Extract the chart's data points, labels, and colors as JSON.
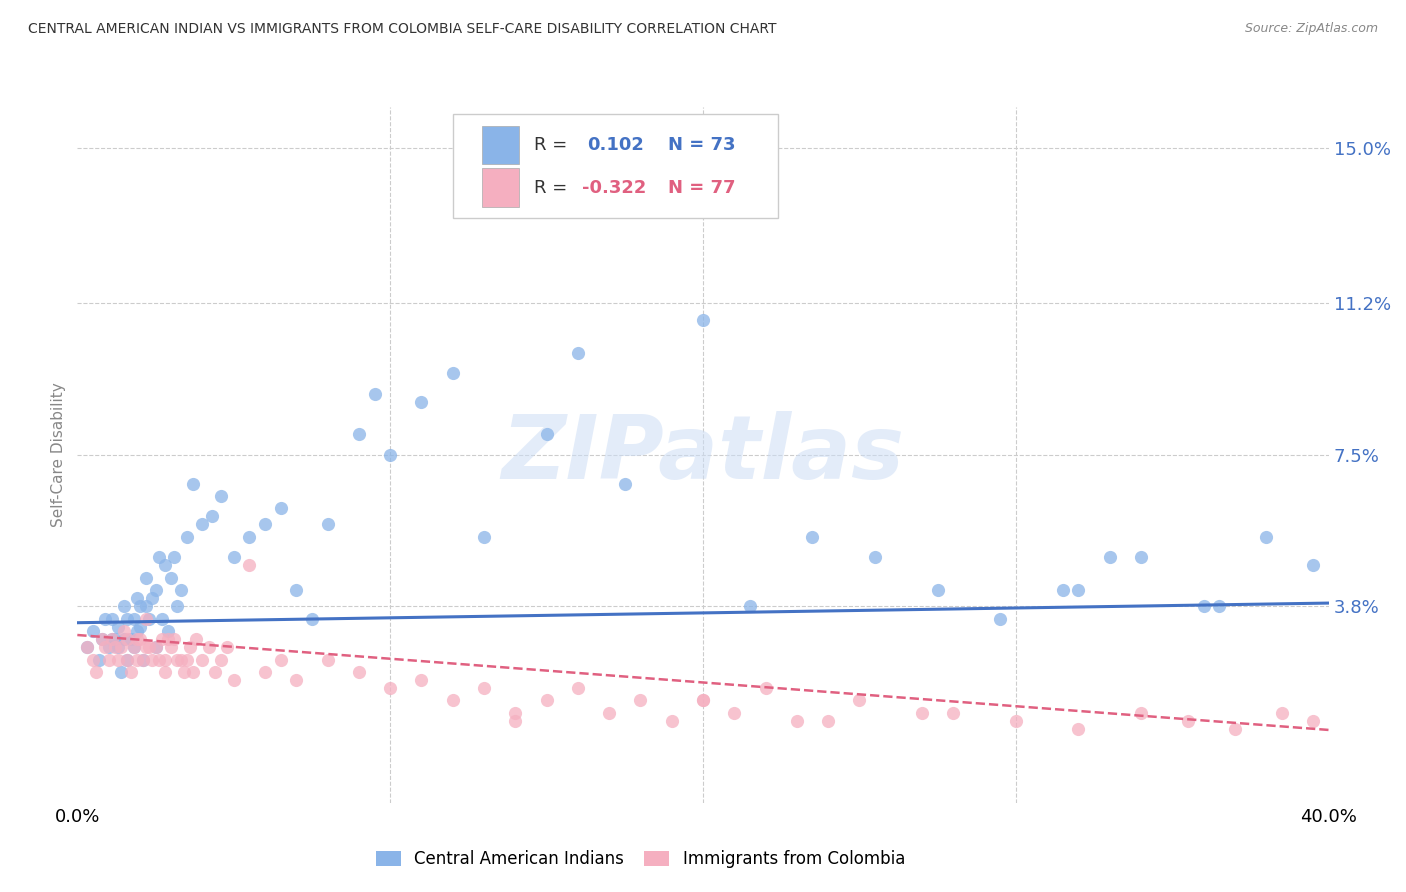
{
  "title": "CENTRAL AMERICAN INDIAN VS IMMIGRANTS FROM COLOMBIA SELF-CARE DISABILITY CORRELATION CHART",
  "source": "Source: ZipAtlas.com",
  "ylabel": "Self-Care Disability",
  "xlim": [
    0.0,
    0.4
  ],
  "ylim": [
    -0.01,
    0.16
  ],
  "xticks": [
    0.0,
    0.1,
    0.2,
    0.3,
    0.4
  ],
  "xticklabels": [
    "0.0%",
    "",
    "",
    "",
    "40.0%"
  ],
  "yticks": [
    0.038,
    0.075,
    0.112,
    0.15
  ],
  "yticklabels": [
    "3.8%",
    "7.5%",
    "11.2%",
    "15.0%"
  ],
  "blue_color": "#8ab4e8",
  "pink_color": "#f5afc0",
  "blue_line_color": "#4472c4",
  "pink_line_color": "#e06080",
  "text_blue": "#4472c4",
  "text_pink": "#e06080",
  "watermark": "ZIPatlas",
  "blue_intercept": 0.034,
  "blue_slope": 0.012,
  "pink_intercept": 0.031,
  "pink_slope": -0.058,
  "blue_scatter_x": [
    0.003,
    0.005,
    0.007,
    0.008,
    0.009,
    0.01,
    0.011,
    0.011,
    0.012,
    0.013,
    0.013,
    0.014,
    0.015,
    0.015,
    0.016,
    0.016,
    0.017,
    0.018,
    0.018,
    0.019,
    0.019,
    0.02,
    0.02,
    0.021,
    0.022,
    0.022,
    0.023,
    0.024,
    0.025,
    0.025,
    0.026,
    0.027,
    0.028,
    0.029,
    0.03,
    0.031,
    0.032,
    0.033,
    0.035,
    0.037,
    0.04,
    0.043,
    0.046,
    0.05,
    0.055,
    0.06,
    0.065,
    0.07,
    0.075,
    0.08,
    0.09,
    0.095,
    0.1,
    0.11,
    0.12,
    0.13,
    0.15,
    0.16,
    0.175,
    0.2,
    0.215,
    0.235,
    0.255,
    0.275,
    0.295,
    0.32,
    0.34,
    0.36,
    0.38,
    0.395,
    0.315,
    0.33,
    0.365
  ],
  "blue_scatter_y": [
    0.028,
    0.032,
    0.025,
    0.03,
    0.035,
    0.028,
    0.035,
    0.03,
    0.03,
    0.033,
    0.028,
    0.022,
    0.038,
    0.03,
    0.035,
    0.025,
    0.03,
    0.035,
    0.028,
    0.032,
    0.04,
    0.033,
    0.038,
    0.025,
    0.045,
    0.038,
    0.035,
    0.04,
    0.042,
    0.028,
    0.05,
    0.035,
    0.048,
    0.032,
    0.045,
    0.05,
    0.038,
    0.042,
    0.055,
    0.068,
    0.058,
    0.06,
    0.065,
    0.05,
    0.055,
    0.058,
    0.062,
    0.042,
    0.035,
    0.058,
    0.08,
    0.09,
    0.075,
    0.088,
    0.095,
    0.055,
    0.08,
    0.1,
    0.068,
    0.108,
    0.038,
    0.055,
    0.05,
    0.042,
    0.035,
    0.042,
    0.05,
    0.038,
    0.055,
    0.048,
    0.042,
    0.05,
    0.038
  ],
  "pink_scatter_x": [
    0.003,
    0.005,
    0.006,
    0.008,
    0.009,
    0.01,
    0.011,
    0.012,
    0.013,
    0.014,
    0.015,
    0.016,
    0.016,
    0.017,
    0.018,
    0.019,
    0.019,
    0.02,
    0.021,
    0.022,
    0.022,
    0.023,
    0.024,
    0.025,
    0.026,
    0.027,
    0.028,
    0.028,
    0.029,
    0.03,
    0.031,
    0.032,
    0.033,
    0.034,
    0.035,
    0.036,
    0.037,
    0.038,
    0.04,
    0.042,
    0.044,
    0.046,
    0.048,
    0.05,
    0.055,
    0.06,
    0.065,
    0.07,
    0.08,
    0.09,
    0.1,
    0.11,
    0.12,
    0.13,
    0.14,
    0.15,
    0.16,
    0.17,
    0.18,
    0.19,
    0.2,
    0.21,
    0.22,
    0.23,
    0.25,
    0.27,
    0.3,
    0.32,
    0.34,
    0.355,
    0.37,
    0.385,
    0.395,
    0.14,
    0.2,
    0.24,
    0.28
  ],
  "pink_scatter_y": [
    0.028,
    0.025,
    0.022,
    0.03,
    0.028,
    0.025,
    0.03,
    0.028,
    0.025,
    0.028,
    0.032,
    0.025,
    0.03,
    0.022,
    0.028,
    0.03,
    0.025,
    0.03,
    0.025,
    0.035,
    0.028,
    0.028,
    0.025,
    0.028,
    0.025,
    0.03,
    0.025,
    0.022,
    0.03,
    0.028,
    0.03,
    0.025,
    0.025,
    0.022,
    0.025,
    0.028,
    0.022,
    0.03,
    0.025,
    0.028,
    0.022,
    0.025,
    0.028,
    0.02,
    0.048,
    0.022,
    0.025,
    0.02,
    0.025,
    0.022,
    0.018,
    0.02,
    0.015,
    0.018,
    0.012,
    0.015,
    0.018,
    0.012,
    0.015,
    0.01,
    0.015,
    0.012,
    0.018,
    0.01,
    0.015,
    0.012,
    0.01,
    0.008,
    0.012,
    0.01,
    0.008,
    0.012,
    0.01,
    0.01,
    0.015,
    0.01,
    0.012
  ]
}
